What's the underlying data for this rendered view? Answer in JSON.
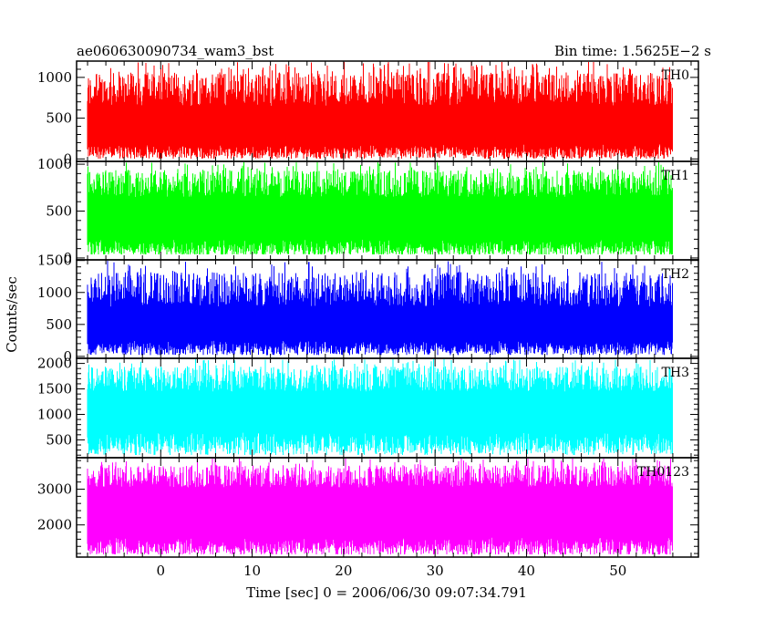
{
  "chart_data": {
    "type": "line",
    "title_left": "ae060630090734_wam3_bst",
    "title_right": "Bin time: 1.5625E−2 s",
    "ylabel": "Counts/sec",
    "xlabel": "Time [sec] 0 = 2006/06/30 09:07:34.791",
    "xlim": [
      -9.2,
      58.8
    ],
    "data_xrange": [
      -8.0,
      56.0
    ],
    "xticks": {
      "major": [
        0,
        10,
        20,
        30,
        40,
        50
      ],
      "labels": [
        "0",
        "10",
        "20",
        "30",
        "40",
        "50"
      ],
      "minor_step": 2
    },
    "grid": false,
    "panels": [
      {
        "label": "TH0",
        "color": "#ff0000",
        "ylim": [
          -30,
          1200
        ],
        "yticks": [
          0,
          500,
          1000
        ],
        "yticklabels": [
          "0",
          "500",
          "1000"
        ],
        "minor_step": 100,
        "envelope": {
          "low_min": 0,
          "low_max": 180,
          "high_min": 650,
          "high_max": 1200
        },
        "spike_rate": 0.7
      },
      {
        "label": "TH1",
        "color": "#00ff00",
        "ylim": [
          -20,
          1030
        ],
        "yticks": [
          0,
          500,
          1000
        ],
        "yticklabels": [
          "0",
          "500",
          "1000"
        ],
        "minor_step": 100,
        "envelope": {
          "low_min": 20,
          "low_max": 200,
          "high_min": 650,
          "high_max": 1030
        },
        "spike_rate": 0.4
      },
      {
        "label": "TH2",
        "color": "#0000ff",
        "ylim": [
          -30,
          1510
        ],
        "yticks": [
          0,
          500,
          1000,
          1500
        ],
        "yticklabels": [
          "0",
          "500",
          "1000",
          "1500"
        ],
        "minor_step": 100,
        "envelope": {
          "low_min": 20,
          "low_max": 250,
          "high_min": 780,
          "high_max": 1500
        },
        "spike_rate": 0.3
      },
      {
        "label": "TH3",
        "color": "#00ffff",
        "ylim": [
          150,
          2100
        ],
        "yticks": [
          500,
          1000,
          1500,
          2000
        ],
        "yticklabels": [
          "500",
          "1000",
          "1500",
          "2000"
        ],
        "minor_step": 100,
        "envelope": {
          "low_min": 200,
          "low_max": 650,
          "high_min": 1450,
          "high_max": 2100
        },
        "spike_rate": 0.45
      },
      {
        "label": "TH0123",
        "color": "#ff00ff",
        "ylim": [
          1100,
          3880
        ],
        "yticks": [
          2000,
          3000
        ],
        "yticklabels": [
          "2000",
          "3000"
        ],
        "minor_step": 200,
        "envelope": {
          "low_min": 1150,
          "low_max": 1650,
          "high_min": 3050,
          "high_max": 3880
        },
        "spike_rate": 0.35
      }
    ]
  }
}
